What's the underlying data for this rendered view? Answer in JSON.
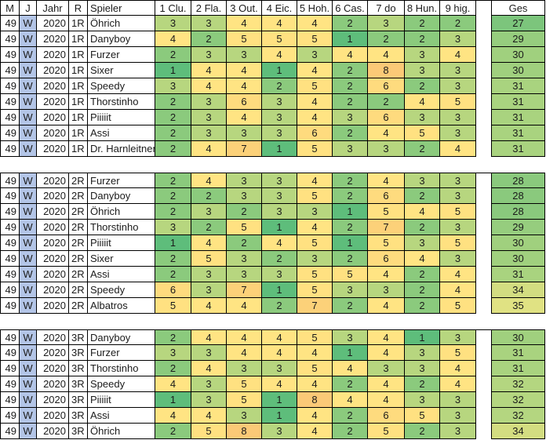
{
  "header": {
    "columns": [
      "M",
      "J",
      "Jahr",
      "R",
      "Spieler",
      "1 Clu.",
      "2 Fla.",
      "3 Out.",
      "4 Eic.",
      "5 Hoh.",
      "6 Cas.",
      "7 do",
      "8 Hun.",
      "9 hig."
    ],
    "total_label": "Ges"
  },
  "defaults": {
    "m": "49",
    "j": "W",
    "jahr": "2020"
  },
  "colors": {
    "j_fill": "#B3C5E7",
    "border": "#000000",
    "score": {
      "1": "#5EBD7B",
      "2": "#8BCA7D",
      "3": "#B7D67F",
      "4": "#FFE483",
      "5": "#FFE181",
      "6": "#FEDB7E",
      "7": "#FCD179",
      "8": "#FBC977"
    },
    "total": {
      "27": "#7CC57C",
      "28": "#8AC97D",
      "29": "#96CD7E",
      "30": "#A0D07E",
      "31": "#A9D37F",
      "32": "#B4D680",
      "34": "#D3DD81",
      "35": "#E0E283"
    }
  },
  "blocks": [
    {
      "round": "1R",
      "rows": [
        {
          "player": "Öhrich",
          "scores": [
            3,
            3,
            4,
            4,
            4,
            2,
            3,
            2,
            2
          ],
          "total": 27
        },
        {
          "player": "Danyboy",
          "scores": [
            4,
            2,
            5,
            5,
            5,
            1,
            2,
            2,
            3
          ],
          "total": 29
        },
        {
          "player": "Furzer",
          "scores": [
            2,
            3,
            3,
            4,
            3,
            4,
            4,
            3,
            4
          ],
          "total": 30
        },
        {
          "player": "Sixer",
          "scores": [
            1,
            4,
            4,
            1,
            4,
            2,
            8,
            3,
            3
          ],
          "total": 30
        },
        {
          "player": "Speedy",
          "scores": [
            3,
            4,
            4,
            2,
            5,
            2,
            6,
            2,
            3
          ],
          "total": 31
        },
        {
          "player": "Thorstinho",
          "scores": [
            2,
            3,
            6,
            3,
            4,
            2,
            2,
            4,
            5
          ],
          "total": 31
        },
        {
          "player": "Piiiiit",
          "scores": [
            2,
            3,
            4,
            3,
            4,
            3,
            6,
            3,
            3
          ],
          "total": 31
        },
        {
          "player": "Assi",
          "scores": [
            2,
            3,
            3,
            3,
            6,
            2,
            4,
            5,
            3
          ],
          "total": 31
        },
        {
          "player": "Dr. Harnleitner",
          "scores": [
            2,
            4,
            7,
            1,
            5,
            3,
            3,
            2,
            4
          ],
          "total": 31
        }
      ]
    },
    {
      "round": "2R",
      "rows": [
        {
          "player": "Furzer",
          "scores": [
            2,
            4,
            3,
            3,
            4,
            2,
            4,
            3,
            3
          ],
          "total": 28
        },
        {
          "player": "Danyboy",
          "scores": [
            2,
            2,
            3,
            3,
            5,
            2,
            6,
            2,
            3
          ],
          "total": 28
        },
        {
          "player": "Öhrich",
          "scores": [
            2,
            3,
            2,
            3,
            3,
            1,
            5,
            4,
            5
          ],
          "total": 28
        },
        {
          "player": "Thorstinho",
          "scores": [
            3,
            2,
            5,
            1,
            4,
            2,
            7,
            2,
            3
          ],
          "total": 29
        },
        {
          "player": "Piiiiit",
          "scores": [
            1,
            4,
            2,
            4,
            5,
            1,
            5,
            3,
            5
          ],
          "total": 30
        },
        {
          "player": "Sixer",
          "scores": [
            2,
            5,
            3,
            2,
            3,
            2,
            6,
            4,
            3
          ],
          "total": 30
        },
        {
          "player": "Assi",
          "scores": [
            2,
            3,
            3,
            3,
            5,
            5,
            4,
            2,
            4
          ],
          "total": 31
        },
        {
          "player": "Speedy",
          "scores": [
            6,
            3,
            7,
            1,
            5,
            3,
            3,
            2,
            4
          ],
          "total": 34
        },
        {
          "player": "Albatros",
          "scores": [
            5,
            4,
            4,
            2,
            7,
            2,
            4,
            2,
            5
          ],
          "total": 35
        }
      ]
    },
    {
      "round": "3R",
      "rows": [
        {
          "player": "Danyboy",
          "scores": [
            2,
            4,
            4,
            4,
            5,
            3,
            4,
            1,
            3
          ],
          "total": 30
        },
        {
          "player": "Furzer",
          "scores": [
            3,
            3,
            4,
            4,
            4,
            1,
            4,
            3,
            5
          ],
          "total": 31
        },
        {
          "player": "Thorstinho",
          "scores": [
            2,
            4,
            3,
            3,
            5,
            4,
            3,
            3,
            4
          ],
          "total": 31
        },
        {
          "player": "Speedy",
          "scores": [
            4,
            3,
            5,
            4,
            4,
            2,
            4,
            2,
            4
          ],
          "total": 32
        },
        {
          "player": "Piiiiit",
          "scores": [
            1,
            3,
            5,
            1,
            8,
            4,
            4,
            3,
            3
          ],
          "total": 32
        },
        {
          "player": "Assi",
          "scores": [
            4,
            4,
            3,
            1,
            4,
            2,
            6,
            5,
            3
          ],
          "total": 32
        },
        {
          "player": "Öhrich",
          "scores": [
            2,
            5,
            8,
            3,
            4,
            2,
            5,
            2,
            3
          ],
          "total": 34
        }
      ]
    }
  ]
}
